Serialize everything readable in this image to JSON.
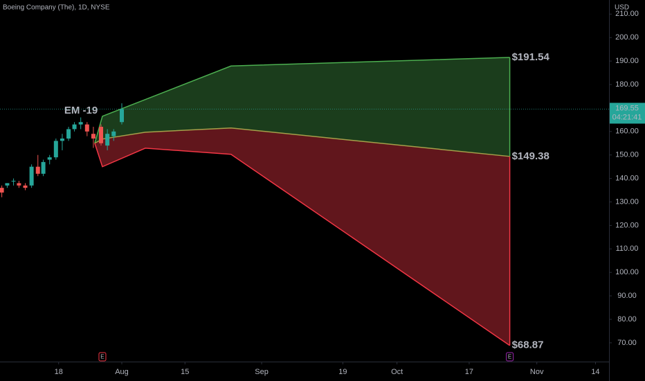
{
  "chart_data": {
    "type": "candlestick",
    "title": "Boeing Company (The), 1D, NYSE",
    "currency": "USD",
    "annotation": "EM -19",
    "annotation_color": "#ffeb3b",
    "xlim": [
      -13,
      122
    ],
    "ylim": [
      62,
      216
    ],
    "xticks": [
      {
        "value": 0,
        "label": "18"
      },
      {
        "value": 14,
        "label": "Aug"
      },
      {
        "value": 28,
        "label": "15"
      },
      {
        "value": 45,
        "label": "Sep"
      },
      {
        "value": 63,
        "label": "19"
      },
      {
        "value": 75,
        "label": "Oct"
      },
      {
        "value": 91,
        "label": "17"
      },
      {
        "value": 106,
        "label": "Nov"
      },
      {
        "value": 119,
        "label": "14"
      }
    ],
    "yticks": [
      {
        "value": 70,
        "label": "70.00"
      },
      {
        "value": 80,
        "label": "80.00"
      },
      {
        "value": 90,
        "label": "90.00"
      },
      {
        "value": 100,
        "label": "100.00"
      },
      {
        "value": 110,
        "label": "110.00"
      },
      {
        "value": 120,
        "label": "120.00"
      },
      {
        "value": 130,
        "label": "130.00"
      },
      {
        "value": 140,
        "label": "140.00"
      },
      {
        "value": 150,
        "label": "150.00"
      },
      {
        "value": 160,
        "label": "160.00"
      },
      {
        "value": 170,
        "label": "170.00"
      },
      {
        "value": 180,
        "label": "180.00"
      },
      {
        "value": 190,
        "label": "190.00"
      },
      {
        "value": 200,
        "label": "200.00"
      },
      {
        "value": 210,
        "label": "210.00"
      }
    ],
    "candles": {
      "x": [
        -12.6,
        -11.4,
        -10,
        -8.8,
        -7.4,
        -6,
        -4.6,
        -3.4,
        -2,
        -0.6,
        0.8,
        2.2,
        3.5,
        4.9,
        6.3,
        7.7,
        9.4,
        10.8,
        12.2,
        14
      ],
      "open": [
        136,
        137,
        139,
        138,
        137,
        137,
        145,
        142,
        148,
        149,
        156,
        157,
        161,
        163,
        163,
        159,
        162,
        154,
        158,
        164
      ],
      "high": [
        137,
        138,
        140,
        139,
        138,
        146,
        150,
        148,
        150,
        157,
        159,
        162,
        164,
        166,
        164,
        162,
        163,
        161,
        161,
        172
      ],
      "low": [
        132,
        136,
        137,
        136,
        135,
        136,
        141,
        141,
        146,
        148,
        152,
        156,
        160,
        161,
        158,
        153,
        154,
        152,
        156,
        163
      ],
      "close": [
        134,
        138,
        139,
        137,
        136,
        145,
        142,
        147,
        149,
        156,
        157,
        161,
        163,
        164,
        160,
        157,
        155,
        159,
        160,
        169.55
      ],
      "up_color": "#26a69a",
      "down_color": "#ef5350"
    },
    "bands": {
      "x": [
        8,
        9.7,
        19.2,
        38.2,
        100
      ],
      "upper": [
        155,
        166.5,
        173.6,
        187.9,
        191.54
      ],
      "middle": [
        155,
        156.8,
        159.7,
        161.5,
        149.38
      ],
      "lower": [
        155,
        145,
        152.9,
        150.3,
        68.87
      ],
      "upper_color": "#4caf50",
      "middle_color": "#a5a04a",
      "lower_color": "#f23645"
    },
    "range_labels": [
      {
        "value": 191.54,
        "label": "$191.54",
        "color": "#5cb85c"
      },
      {
        "value": 149.38,
        "label": "$149.38",
        "color": "#ffeb3b"
      },
      {
        "value": 68.87,
        "label": "$68.87",
        "color": "#f23645"
      }
    ],
    "last_price": 169.55,
    "countdown": "04:21:41",
    "last_price_color": "#26a69a",
    "events": [
      {
        "x": 9.7,
        "label": "E",
        "color": "#f23645"
      },
      {
        "x": 100,
        "label": "E",
        "color": "#9c27b0"
      }
    ]
  }
}
